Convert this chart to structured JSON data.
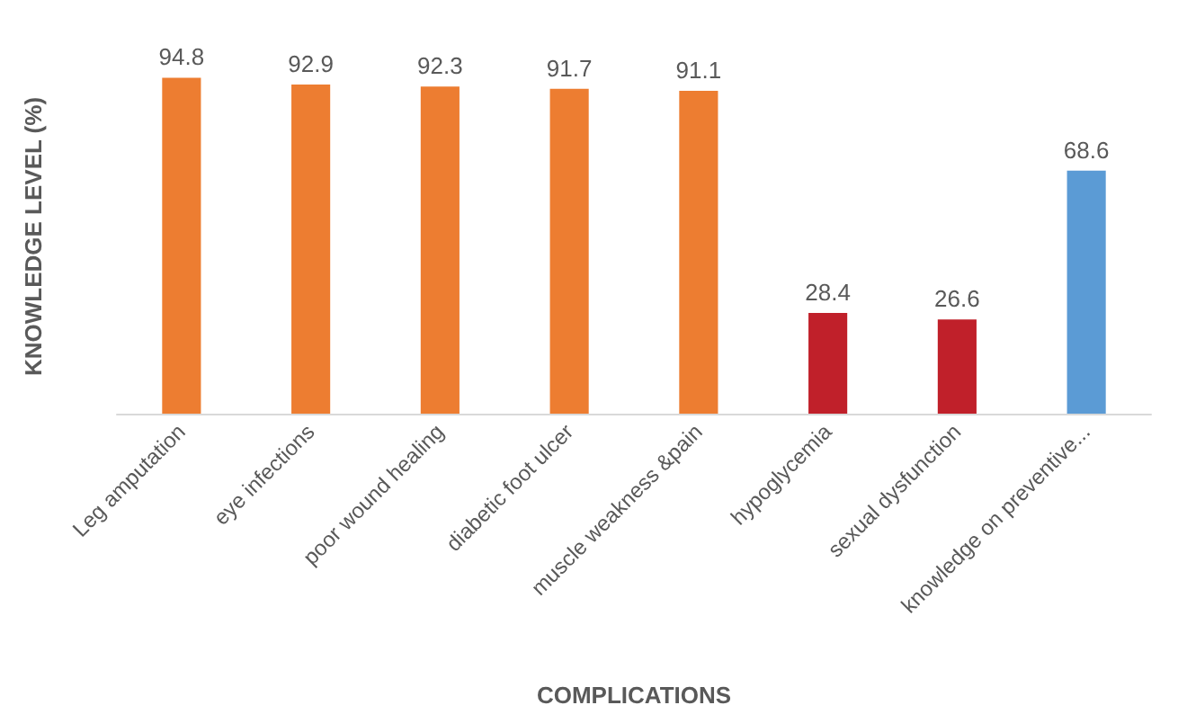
{
  "chart_data": {
    "type": "bar",
    "xlabel": "COMPLICATIONS",
    "ylabel": "KNOWLEDGE LEVEL (%)",
    "categories": [
      "Leg amputation",
      "eye infections",
      "poor wound healing",
      "diabetic foot ulcer",
      "muscle weakness &pain",
      "hypoglycemia",
      "sexual dysfunction",
      "knowledge on preventive..."
    ],
    "values": [
      94.8,
      92.9,
      92.3,
      91.7,
      91.1,
      28.4,
      26.6,
      68.6
    ],
    "colors": [
      "#ed7d31",
      "#ed7d31",
      "#ed7d31",
      "#ed7d31",
      "#ed7d31",
      "#c0202a",
      "#c0202a",
      "#5b9bd5"
    ],
    "data_labels": true,
    "tick_labels": "x"
  }
}
